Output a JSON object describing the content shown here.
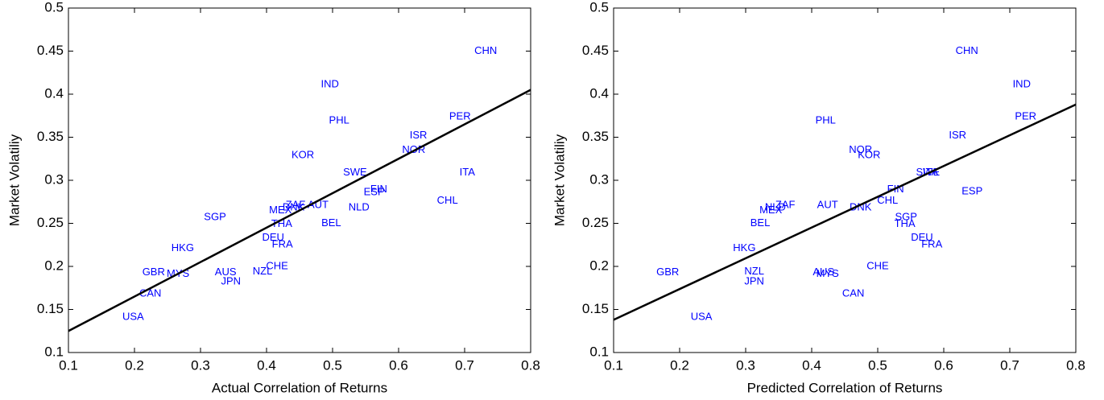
{
  "chart_data": [
    {
      "type": "scatter",
      "xlabel": "Actual Correlation of Returns",
      "ylabel": "Market Volatiliy",
      "xlim": [
        0.1,
        0.8
      ],
      "ylim": [
        0.1,
        0.5
      ],
      "xticks": [
        0.1,
        0.2,
        0.3,
        0.4,
        0.5,
        0.6,
        0.7,
        0.8
      ],
      "yticks": [
        0.1,
        0.15,
        0.2,
        0.25,
        0.3,
        0.35,
        0.4,
        0.45,
        0.5
      ],
      "grid": false,
      "series": [
        {
          "color": "#0000ff",
          "labels": [
            "CHN",
            "IND",
            "PER",
            "PHL",
            "ISR",
            "NOR",
            "KOR",
            "SWE",
            "ITA",
            "FIN",
            "ESP",
            "CHL",
            "ZAF",
            "AUT",
            "DNK",
            "MEX",
            "NLD",
            "SGP",
            "THA",
            "BEL",
            "DEU",
            "FRA",
            "HKG",
            "CHE",
            "NZL",
            "AUS",
            "GBR",
            "MYS",
            "JPN",
            "CAN",
            "USA"
          ],
          "x": [
            0.732,
            0.496,
            0.693,
            0.51,
            0.63,
            0.623,
            0.455,
            0.534,
            0.704,
            0.57,
            0.563,
            0.674,
            0.444,
            0.478,
            0.441,
            0.421,
            0.54,
            0.322,
            0.423,
            0.498,
            0.41,
            0.424,
            0.273,
            0.416,
            0.394,
            0.338,
            0.229,
            0.266,
            0.346,
            0.224,
            0.198
          ],
          "values": [
            0.45,
            0.411,
            0.374,
            0.369,
            0.352,
            0.335,
            0.329,
            0.309,
            0.309,
            0.289,
            0.286,
            0.276,
            0.271,
            0.271,
            0.268,
            0.265,
            0.268,
            0.257,
            0.249,
            0.25,
            0.233,
            0.225,
            0.221,
            0.2,
            0.194,
            0.193,
            0.193,
            0.191,
            0.182,
            0.168,
            0.141
          ]
        }
      ],
      "fit_line": {
        "color": "#000000",
        "x": [
          0.1,
          0.8
        ],
        "y": [
          0.125,
          0.405
        ]
      }
    },
    {
      "type": "scatter",
      "xlabel": "Predicted Correlation of Returns",
      "ylabel": "Market Volatiliy",
      "xlim": [
        0.1,
        0.8
      ],
      "ylim": [
        0.1,
        0.5
      ],
      "xticks": [
        0.1,
        0.2,
        0.3,
        0.4,
        0.5,
        0.6,
        0.7,
        0.8
      ],
      "yticks": [
        0.1,
        0.15,
        0.2,
        0.25,
        0.3,
        0.35,
        0.4,
        0.45,
        0.5
      ],
      "grid": false,
      "series": [
        {
          "color": "#0000ff",
          "labels": [
            "CHN",
            "IND",
            "PER",
            "PHL",
            "ISR",
            "NOR",
            "KOR",
            "SWE",
            "ITA",
            "FIN",
            "ESP",
            "CHL",
            "ZAF",
            "NLD",
            "MEX",
            "AUT",
            "DNK",
            "SGP",
            "THA",
            "BEL",
            "DEU",
            "FRA",
            "HKG",
            "CHE",
            "NZL",
            "AUS",
            "MYS",
            "GBR",
            "JPN",
            "CAN",
            "USA"
          ],
          "x": [
            0.635,
            0.718,
            0.724,
            0.421,
            0.621,
            0.474,
            0.487,
            0.576,
            0.58,
            0.527,
            0.643,
            0.515,
            0.36,
            0.345,
            0.338,
            0.424,
            0.474,
            0.543,
            0.541,
            0.322,
            0.567,
            0.582,
            0.298,
            0.5,
            0.313,
            0.418,
            0.424,
            0.182,
            0.313,
            0.463,
            0.233
          ],
          "values": [
            0.45,
            0.411,
            0.374,
            0.369,
            0.352,
            0.335,
            0.329,
            0.309,
            0.309,
            0.289,
            0.287,
            0.276,
            0.271,
            0.268,
            0.265,
            0.271,
            0.268,
            0.257,
            0.249,
            0.25,
            0.233,
            0.225,
            0.221,
            0.2,
            0.194,
            0.193,
            0.191,
            0.193,
            0.182,
            0.168,
            0.141
          ]
        }
      ],
      "fit_line": {
        "color": "#000000",
        "x": [
          0.1,
          0.8
        ],
        "y": [
          0.138,
          0.388
        ]
      }
    }
  ]
}
